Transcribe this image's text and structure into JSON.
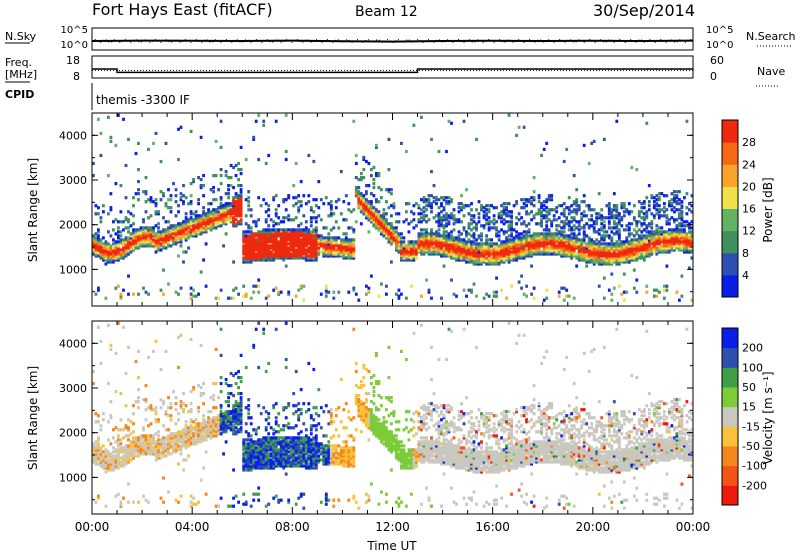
{
  "header": {
    "radar": "Fort Hays East (fitACF)",
    "beam": "Beam 12",
    "date": "30/Sep/2014"
  },
  "labels": {
    "nsky": "N.Sky",
    "nsearch": "N.Search",
    "freq_top": "Freq.",
    "freq_unit": "[MHz]",
    "nave": "Nave",
    "cpid": "CPID",
    "cpid_value": "themis -3300 IF",
    "slant_range": "Slant Range [km]",
    "time_axis": "Time UT",
    "power_bar": "Power [dB]",
    "velocity_bar": "Velocity [m s⁻¹]"
  },
  "colors": {
    "power_scale": [
      "#0a1ee6",
      "#2f4fb0",
      "#3f8f5f",
      "#63b263",
      "#f0e04a",
      "#f8a32c",
      "#f46a14",
      "#ee2a0e"
    ],
    "velocity_scale": [
      "#ee1a0e",
      "#f45416",
      "#f4861c",
      "#f8c33a",
      "#c8c8c0",
      "#7ccc3a",
      "#3f9f46",
      "#2f4fb0",
      "#0a1ee6"
    ]
  },
  "chart_data": [
    {
      "type": "line",
      "name": "noise-panel",
      "ylabel_left": "N.Sky",
      "ylabel_right": "N.Search",
      "left_ticks": [
        "10^5",
        "10^0"
      ],
      "right_ticks": [
        "10^5",
        "10^0"
      ],
      "x": [
        "00:00",
        "02:00",
        "04:00",
        "06:00",
        "08:00",
        "10:00",
        "12:00",
        "14:00",
        "16:00",
        "18:00",
        "20:00",
        "22:00",
        "24:00"
      ],
      "nsky_log": [
        2.0,
        2.1,
        2.05,
        2.0,
        2.1,
        1.95,
        1.85,
        2.0,
        2.05,
        2.0,
        2.05,
        2.0,
        2.1
      ]
    },
    {
      "type": "line",
      "name": "freq-panel",
      "left_ticks": [
        "18",
        "8"
      ],
      "right_ticks": [
        "60",
        "0"
      ],
      "series": [
        {
          "name": "Freq.",
          "x": [
            "00:00",
            "01:00",
            "01:00",
            "13:00",
            "13:00",
            "24:00"
          ],
          "values": [
            12.0,
            12.0,
            10.3,
            10.3,
            12.0,
            12.0
          ]
        },
        {
          "name": "Nave",
          "x": [
            "00:00",
            "24:00"
          ],
          "values": [
            20,
            20
          ]
        }
      ]
    },
    {
      "type": "heatmap",
      "name": "power-panel",
      "ylabel": "Slant Range [km]",
      "ylim": [
        180,
        4500
      ],
      "yticks": [
        1000,
        2000,
        3000,
        4000
      ],
      "xlim": [
        0,
        24
      ],
      "colorbar": {
        "label": "Power [dB]",
        "ticks": [
          4,
          8,
          12,
          16,
          20,
          24,
          28
        ],
        "range": [
          0,
          32
        ]
      }
    },
    {
      "type": "heatmap",
      "name": "velocity-panel",
      "ylabel": "Slant Range [km]",
      "ylim": [
        180,
        4500
      ],
      "yticks": [
        1000,
        2000,
        3000,
        4000
      ],
      "xlim": [
        0,
        24
      ],
      "xticks": [
        "00:00",
        "04:00",
        "08:00",
        "12:00",
        "16:00",
        "20:00",
        "00:00"
      ],
      "xlabel": "Time UT",
      "colorbar": {
        "label": "Velocity [m s⁻¹]",
        "ticks": [
          -200,
          -100,
          -50,
          -15,
          15,
          50,
          100,
          200
        ]
      }
    }
  ]
}
